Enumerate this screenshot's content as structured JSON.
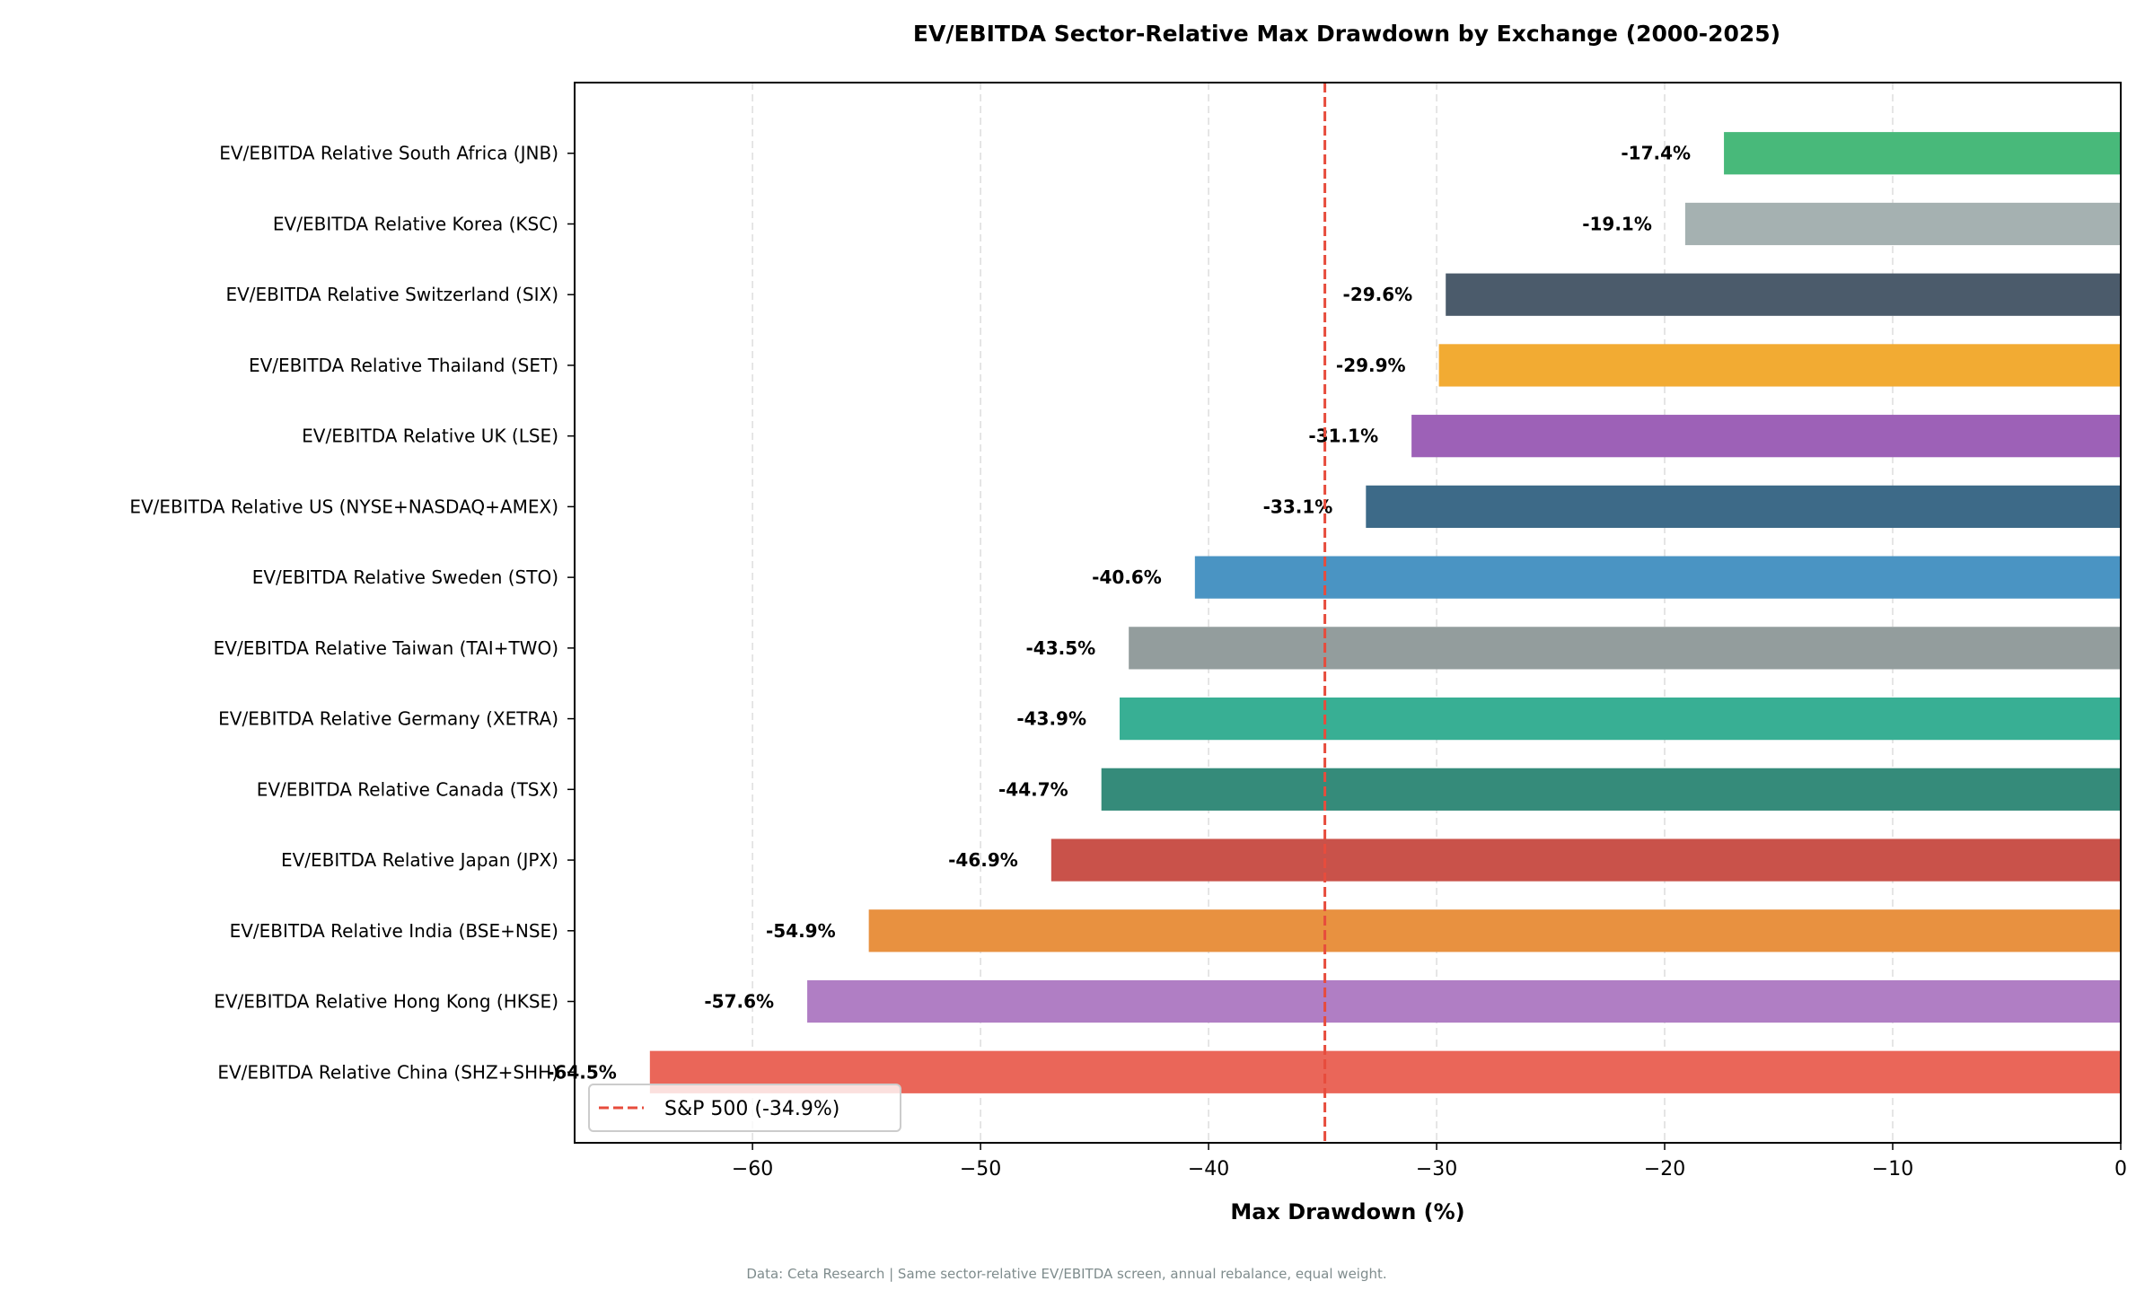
{
  "chart_data": {
    "type": "bar",
    "orientation": "horizontal",
    "title": "EV/EBITDA Sector-Relative Max Drawdown by Exchange (2000-2025)",
    "xlabel": "Max Drawdown (%)",
    "ylabel": "",
    "xlim": [
      -67.8,
      0
    ],
    "xticks": [
      -60,
      -50,
      -40,
      -30,
      -20,
      -10,
      0
    ],
    "xtick_labels": [
      "−60",
      "−50",
      "−40",
      "−30",
      "−20",
      "−10",
      "0"
    ],
    "grid": "x-dashed",
    "categories": [
      "EV/EBITDA Relative China (SHZ+SHH)",
      "EV/EBITDA Relative Hong Kong (HKSE)",
      "EV/EBITDA Relative India (BSE+NSE)",
      "EV/EBITDA Relative Japan (JPX)",
      "EV/EBITDA Relative Canada (TSX)",
      "EV/EBITDA Relative Germany (XETRA)",
      "EV/EBITDA Relative Taiwan (TAI+TWO)",
      "EV/EBITDA Relative Sweden (STO)",
      "EV/EBITDA Relative US (NYSE+NASDAQ+AMEX)",
      "EV/EBITDA Relative UK (LSE)",
      "EV/EBITDA Relative Thailand (SET)",
      "EV/EBITDA Relative Switzerland (SIX)",
      "EV/EBITDA Relative Korea (KSC)",
      "EV/EBITDA Relative South Africa (JNB)"
    ],
    "values": [
      -64.5,
      -57.6,
      -54.9,
      -46.9,
      -44.7,
      -43.9,
      -43.5,
      -40.6,
      -33.1,
      -31.1,
      -29.9,
      -29.6,
      -19.1,
      -17.4
    ],
    "data_labels": [
      "-64.5%",
      "-57.6%",
      "-54.9%",
      "-46.9%",
      "-44.7%",
      "-43.9%",
      "-43.5%",
      "-40.6%",
      "-33.1%",
      "-31.1%",
      "-29.9%",
      "-29.6%",
      "-19.1%",
      "-17.4%"
    ],
    "colors": [
      "#ea6659",
      "#b07ec4",
      "#e89140",
      "#c9524a",
      "#358b7a",
      "#38af94",
      "#939d9d",
      "#4a94c3",
      "#3d6a88",
      "#9d61b7",
      "#f2ab33",
      "#4b5b6b",
      "#a5b1b1",
      "#48b97a"
    ],
    "reference_line": {
      "value": -34.9,
      "label": "S&P 500 (-34.9%)",
      "color": "#e74c3c",
      "style": "dashed"
    },
    "legend_placement": "lower-left",
    "footnote": "Data: Ceta Research | Same sector-relative EV/EBITDA screen, annual rebalance, equal weight."
  }
}
